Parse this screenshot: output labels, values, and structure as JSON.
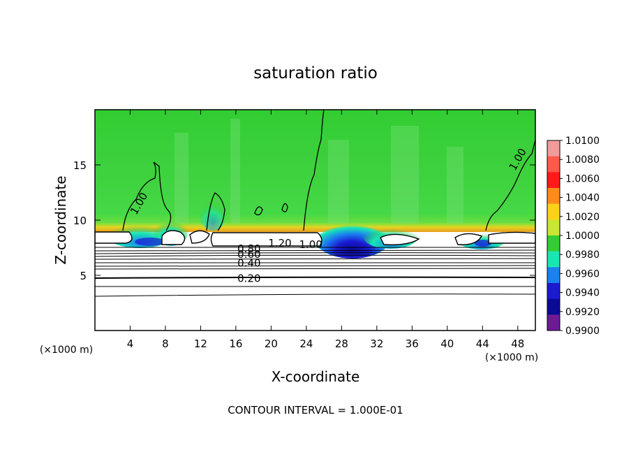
{
  "chart_data": {
    "type": "heatmap",
    "title": "saturation ratio",
    "xlabel": "X-coordinate",
    "ylabel": "Z-coordinate",
    "x_unit_left": "(×1000 m)",
    "x_unit_right": "(×1000 m)",
    "footer": "CONTOUR INTERVAL = 1.000E-01",
    "xlim": [
      0,
      50
    ],
    "ylim": [
      0,
      20
    ],
    "x_ticks": [
      4,
      8,
      12,
      16,
      20,
      24,
      28,
      32,
      36,
      40,
      44,
      48
    ],
    "y_ticks": [
      5,
      10,
      15
    ],
    "colorbar": {
      "levels": [
        "1.0100",
        "1.0080",
        "1.0060",
        "1.0040",
        "1.0020",
        "1.0000",
        "0.9980",
        "0.9960",
        "0.9940",
        "0.9920",
        "0.9900"
      ],
      "colors": [
        "#f39b9b",
        "#ff5a4a",
        "#ff1a1a",
        "#ff8c1a",
        "#ffd21a",
        "#c8e632",
        "#32cd32",
        "#1ae6b4",
        "#1a82f0",
        "#1a1ad2",
        "#0a0a96",
        "#6e1a96"
      ]
    },
    "contour_labels": [
      {
        "text": "1.00",
        "x": 5,
        "z": 11.5
      },
      {
        "text": "1.00",
        "x": 48,
        "z": 15.5
      },
      {
        "text": "1.20",
        "x": 21,
        "z": 7.9
      },
      {
        "text": "1.00",
        "x": 24.5,
        "z": 7.8
      },
      {
        "text": "0.80",
        "x": 17.5,
        "z": 7.4
      },
      {
        "text": "0.60",
        "x": 17.5,
        "z": 6.9
      },
      {
        "text": "0.40",
        "x": 17.5,
        "z": 6.1
      },
      {
        "text": "0.20",
        "x": 17.5,
        "z": 4.7
      }
    ]
  }
}
